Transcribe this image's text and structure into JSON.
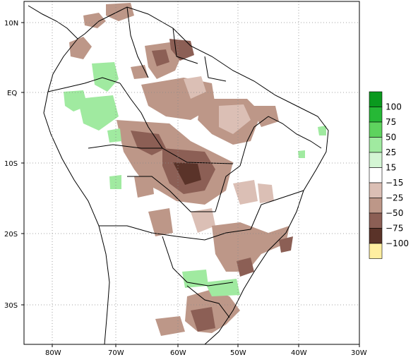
{
  "map": {
    "lat_labels": [
      "10N",
      "EQ",
      "10S",
      "20S",
      "30S"
    ],
    "lon_labels": [
      "80W",
      "70W",
      "60W",
      "50W",
      "40W",
      "30W"
    ],
    "grid_style": "dotted"
  },
  "legend": {
    "labels": [
      "100",
      "75",
      "50",
      "25",
      "15",
      "−15",
      "−25",
      "−50",
      "−75",
      "−100"
    ],
    "colors": [
      "#0a9a1e",
      "#26b836",
      "#5ed35e",
      "#a0eaa0",
      "#d4f5d4",
      "#ffffff",
      "#dbbfb5",
      "#bd9788",
      "#8c5f55",
      "#5a3329",
      "#ffeea0"
    ],
    "color_meaning": [
      "green = positive anomaly",
      "brown = negative anomaly"
    ]
  }
}
